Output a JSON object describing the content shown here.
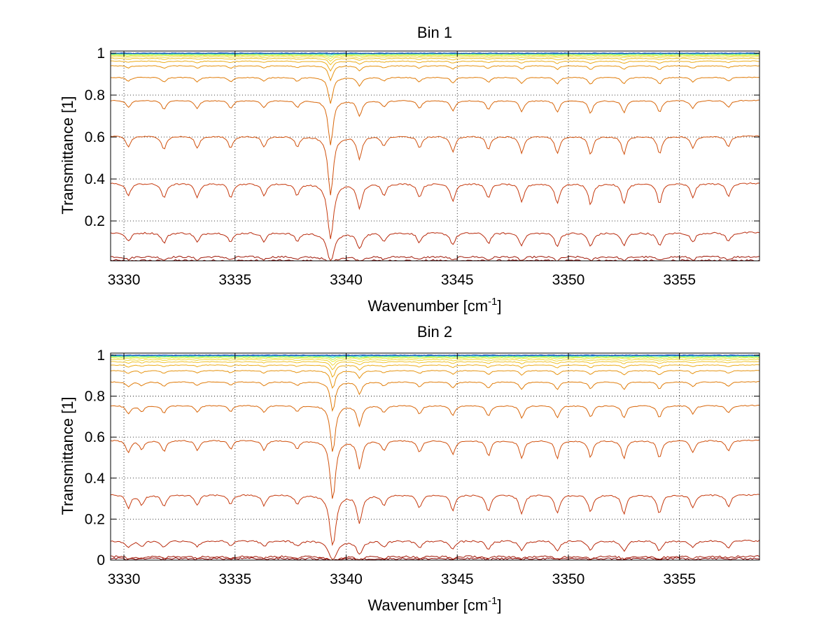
{
  "figure": {
    "background": "#ffffff"
  },
  "chart_data": [
    {
      "type": "line",
      "title": "Bin 1",
      "xlabel": "Wavenumber [cm",
      "xlabel_sup": "-1",
      "xlabel_end": "]",
      "ylabel": "Transmittance [1]",
      "xlim": [
        3329.4,
        3358.6
      ],
      "ylim": [
        0.01,
        1.01
      ],
      "xticks": [
        3330,
        3335,
        3340,
        3345,
        3350,
        3355
      ],
      "xtick_labels": [
        "3330",
        "3335",
        "3340",
        "3345",
        "3350",
        "3355"
      ],
      "yticks": [
        0.2,
        0.4,
        0.6,
        0.8,
        1
      ],
      "ytick_labels": [
        "0.2",
        "0.4",
        "0.6",
        "0.8",
        "1"
      ],
      "grid": "dotted",
      "colormap": [
        "#8b0000",
        "#a01808",
        "#b82a0c",
        "#c63a0e",
        "#d0500c",
        "#d8660a",
        "#e07c0a",
        "#e69412",
        "#ecac1a",
        "#f0c22a",
        "#f2d83c",
        "#e6ec40",
        "#b4f04a",
        "#60e89a",
        "#28c8d8",
        "#1f77d0",
        "#1440b0"
      ],
      "series_baselines": [
        0.012,
        0.03,
        0.145,
        0.38,
        0.605,
        0.775,
        0.885,
        0.94,
        0.962,
        0.975,
        0.983,
        0.989,
        0.993,
        0.996,
        0.998,
        0.999,
        1.0
      ],
      "absorption_lines": [
        {
          "x": 3330.2,
          "s": 0.18
        },
        {
          "x": 3331.8,
          "s": 0.22
        },
        {
          "x": 3333.3,
          "s": 0.2
        },
        {
          "x": 3334.8,
          "s": 0.2
        },
        {
          "x": 3336.3,
          "s": 0.18
        },
        {
          "x": 3337.8,
          "s": 0.17
        },
        {
          "x": 3339.3,
          "s": 1.25
        },
        {
          "x": 3340.6,
          "s": 0.4
        },
        {
          "x": 3341.7,
          "s": 0.16
        },
        {
          "x": 3343.3,
          "s": 0.2
        },
        {
          "x": 3344.8,
          "s": 0.26
        },
        {
          "x": 3346.4,
          "s": 0.22
        },
        {
          "x": 3347.9,
          "s": 0.28
        },
        {
          "x": 3349.5,
          "s": 0.3
        },
        {
          "x": 3351.0,
          "s": 0.32
        },
        {
          "x": 3352.5,
          "s": 0.3
        },
        {
          "x": 3354.1,
          "s": 0.3
        },
        {
          "x": 3355.6,
          "s": 0.2
        },
        {
          "x": 3357.2,
          "s": 0.18
        }
      ]
    },
    {
      "type": "line",
      "title": "Bin 2",
      "xlabel": "Wavenumber [cm",
      "xlabel_sup": "-1",
      "xlabel_end": "]",
      "ylabel": "Transmittance [1]",
      "xlim": [
        3329.4,
        3358.6
      ],
      "ylim": [
        0,
        1.01
      ],
      "xticks": [
        3330,
        3335,
        3340,
        3345,
        3350,
        3355
      ],
      "xtick_labels": [
        "3330",
        "3335",
        "3340",
        "3345",
        "3350",
        "3355"
      ],
      "yticks": [
        0,
        0.2,
        0.4,
        0.6,
        0.8,
        1
      ],
      "ytick_labels": [
        "0",
        "0.2",
        "0.4",
        "0.6",
        "0.8",
        "1"
      ],
      "grid": "dotted",
      "colormap": [
        "#8b0000",
        "#a01808",
        "#b82a0c",
        "#c63a0e",
        "#d0500c",
        "#d8660a",
        "#e07c0a",
        "#e69412",
        "#ecac1a",
        "#f0c22a",
        "#f2d83c",
        "#e6ec40",
        "#b4f04a",
        "#60e89a",
        "#28c8d8",
        "#1f77d0",
        "#1440b0"
      ],
      "series_baselines": [
        0.008,
        0.018,
        0.095,
        0.32,
        0.585,
        0.755,
        0.87,
        0.925,
        0.952,
        0.968,
        0.978,
        0.986,
        0.991,
        0.995,
        0.997,
        0.999,
        1.0
      ],
      "absorption_lines": [
        {
          "x": 3330.2,
          "s": 0.2
        },
        {
          "x": 3330.8,
          "s": 0.15
        },
        {
          "x": 3331.8,
          "s": 0.18
        },
        {
          "x": 3333.3,
          "s": 0.16
        },
        {
          "x": 3334.8,
          "s": 0.14
        },
        {
          "x": 3336.3,
          "s": 0.16
        },
        {
          "x": 3337.8,
          "s": 0.14
        },
        {
          "x": 3339.4,
          "s": 1.3
        },
        {
          "x": 3340.6,
          "s": 0.5
        },
        {
          "x": 3341.7,
          "s": 0.16
        },
        {
          "x": 3343.3,
          "s": 0.2
        },
        {
          "x": 3344.8,
          "s": 0.24
        },
        {
          "x": 3346.4,
          "s": 0.26
        },
        {
          "x": 3347.9,
          "s": 0.3
        },
        {
          "x": 3349.5,
          "s": 0.3
        },
        {
          "x": 3351.0,
          "s": 0.28
        },
        {
          "x": 3352.5,
          "s": 0.3
        },
        {
          "x": 3354.1,
          "s": 0.3
        },
        {
          "x": 3355.6,
          "s": 0.2
        },
        {
          "x": 3357.2,
          "s": 0.18
        }
      ]
    }
  ]
}
